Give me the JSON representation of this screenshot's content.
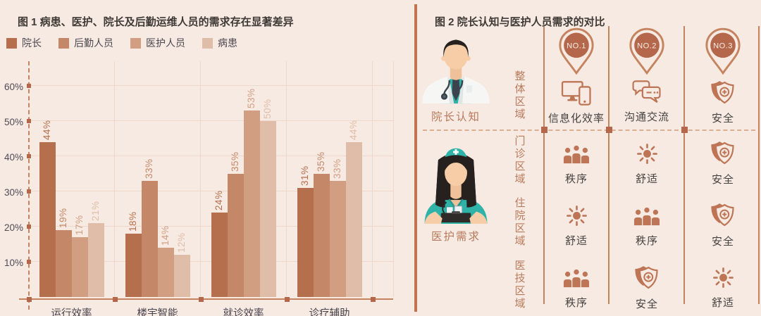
{
  "colors": {
    "background": "#f7eae2",
    "grid_line": "#edd8cb",
    "axis": "#c5835f",
    "marker": "#b4674a",
    "icon_rust": "#bd7556",
    "pin_fill": "#b4674a",
    "pin_text": "#f8ece3",
    "rust_text": "#b87a5c",
    "dark_text": "#45413e",
    "tick_text": "#4f4b55",
    "title_text": "#3f3a35",
    "panel_separator": "#c0734f",
    "teal": "#2fb3a9",
    "skin": "#f6cda6"
  },
  "figure1": {
    "title": "图 1 病患、医护、院长及后勤运维人员的需求存在显著差异"
  },
  "chart_data": {
    "type": "bar",
    "title": "图 1 病患、医护、院长及后勤运维人员的需求存在显著差异",
    "categories": [
      "运行效率",
      "楼宇智能",
      "就诊效率",
      "诊疗辅助"
    ],
    "series": [
      {
        "name": "院长",
        "color": "#b56f4d",
        "values": [
          44,
          18,
          24,
          31
        ]
      },
      {
        "name": "后勤人员",
        "color": "#c48768",
        "values": [
          19,
          33,
          35,
          35
        ]
      },
      {
        "name": "医护人员",
        "color": "#d29e82",
        "values": [
          17,
          14,
          53,
          33
        ]
      },
      {
        "name": "病患",
        "color": "#e0bda9",
        "values": [
          21,
          12,
          50,
          44
        ]
      }
    ],
    "value_suffix": "%",
    "yticks": [
      "10%",
      "20%",
      "30%",
      "40%",
      "50%",
      "60%"
    ],
    "ylim": [
      0,
      60
    ],
    "grid": true,
    "legend_position": "top-left"
  },
  "figure2": {
    "title": "图 2 院长认知与医护人员需求的对比",
    "director": {
      "avatar": "doctor-avatar-icon",
      "label": "院长认知",
      "area_label": "整体区域",
      "items": [
        {
          "rank": "NO.1",
          "icon": "devices-icon",
          "label": "信息化效率"
        },
        {
          "rank": "NO.2",
          "icon": "chat-icon",
          "label": "沟通交流"
        },
        {
          "rank": "NO.3",
          "icon": "shield-icon",
          "label": "安全"
        }
      ]
    },
    "staff": {
      "avatar": "nurse-avatar-icon",
      "label": "医护需求",
      "rows": [
        {
          "area": "门诊区域",
          "needs": [
            {
              "icon": "people-icon",
              "label": "秩序"
            },
            {
              "icon": "sun-icon",
              "label": "舒适"
            },
            {
              "icon": "shield-icon",
              "label": "安全"
            }
          ]
        },
        {
          "area": "住院区域",
          "needs": [
            {
              "icon": "sun-icon",
              "label": "舒适"
            },
            {
              "icon": "people-icon",
              "label": "秩序"
            },
            {
              "icon": "shield-icon",
              "label": "安全"
            }
          ]
        },
        {
          "area": "医技区域",
          "needs": [
            {
              "icon": "people-icon",
              "label": "秩序"
            },
            {
              "icon": "shield-icon",
              "label": "安全"
            },
            {
              "icon": "sun-icon",
              "label": "舒适"
            }
          ]
        }
      ]
    }
  }
}
